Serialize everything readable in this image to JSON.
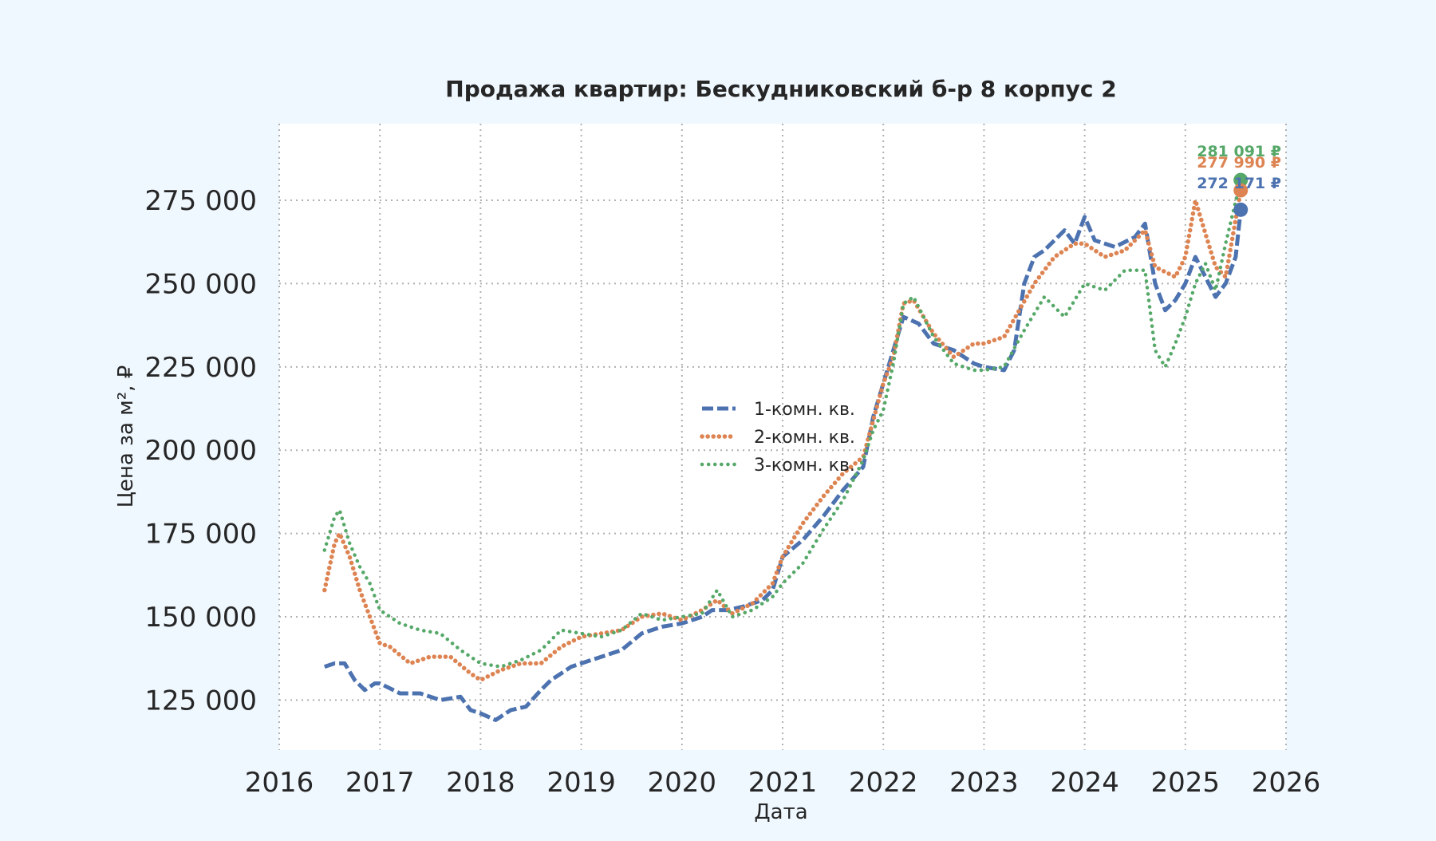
{
  "chart_data": {
    "type": "line",
    "title": "Продажа квартир: Бескудниковский б-р 8 корпус 2",
    "xlabel": "Дата",
    "ylabel": "Цена за м², ₽",
    "xlim": [
      2016,
      2026
    ],
    "ylim": [
      110000,
      298000
    ],
    "x_ticks": [
      "2016",
      "2017",
      "2018",
      "2019",
      "2020",
      "2021",
      "2022",
      "2023",
      "2024",
      "2025",
      "2026"
    ],
    "y_ticks": [
      "125 000",
      "150 000",
      "175 000",
      "200 000",
      "225 000",
      "250 000",
      "275 000"
    ],
    "y_tick_values": [
      125000,
      150000,
      175000,
      200000,
      225000,
      250000,
      275000
    ],
    "grid": true,
    "legend_position": "center",
    "colors": {
      "one_room": "#4c72b0",
      "two_room": "#dd8452",
      "three_room": "#55a868",
      "background": "#f0f8ff",
      "plot_background": "#ffffff"
    },
    "series": [
      {
        "name": "1-комн. кв.",
        "color": "#4c72b0",
        "style": "dashed",
        "x": [
          2016.45,
          2016.55,
          2016.65,
          2016.75,
          2016.85,
          2016.95,
          2017.0,
          2017.2,
          2017.4,
          2017.6,
          2017.8,
          2017.9,
          2018.0,
          2018.15,
          2018.3,
          2018.45,
          2018.6,
          2018.7,
          2018.8,
          2018.9,
          2019.0,
          2019.2,
          2019.4,
          2019.6,
          2019.8,
          2020.0,
          2020.2,
          2020.3,
          2020.45,
          2020.6,
          2020.8,
          2020.9,
          2021.0,
          2021.2,
          2021.4,
          2021.6,
          2021.8,
          2021.9,
          2022.0,
          2022.1,
          2022.2,
          2022.35,
          2022.5,
          2022.7,
          2022.9,
          2023.0,
          2023.2,
          2023.3,
          2023.4,
          2023.5,
          2023.6,
          2023.8,
          2023.9,
          2024.0,
          2024.1,
          2024.3,
          2024.5,
          2024.6,
          2024.7,
          2024.8,
          2024.9,
          2025.0,
          2025.1,
          2025.2,
          2025.3,
          2025.4,
          2025.5,
          2025.55
        ],
        "y": [
          135000,
          136000,
          136000,
          131000,
          128000,
          130000,
          130000,
          127000,
          127000,
          125000,
          126000,
          122000,
          121000,
          119000,
          122000,
          123000,
          128000,
          131000,
          133000,
          135000,
          136000,
          138000,
          140000,
          145000,
          147000,
          148000,
          150000,
          152000,
          152000,
          153000,
          155000,
          158000,
          168000,
          173000,
          180000,
          188000,
          195000,
          210000,
          220000,
          230000,
          240000,
          238000,
          232000,
          230000,
          226000,
          225000,
          224000,
          230000,
          250000,
          258000,
          260000,
          266000,
          262000,
          270000,
          263000,
          261000,
          264000,
          268000,
          250000,
          242000,
          245000,
          250000,
          258000,
          252000,
          246000,
          250000,
          258000,
          272171
        ]
      },
      {
        "name": "2-комн. кв.",
        "color": "#dd8452",
        "style": "dotted-dense",
        "x": [
          2016.45,
          2016.55,
          2016.6,
          2016.7,
          2016.8,
          2016.9,
          2017.0,
          2017.1,
          2017.3,
          2017.5,
          2017.7,
          2017.9,
          2018.0,
          2018.2,
          2018.4,
          2018.6,
          2018.8,
          2019.0,
          2019.2,
          2019.4,
          2019.6,
          2019.8,
          2020.0,
          2020.2,
          2020.35,
          2020.5,
          2020.7,
          2020.9,
          2021.0,
          2021.2,
          2021.4,
          2021.6,
          2021.8,
          2022.0,
          2022.1,
          2022.2,
          2022.3,
          2022.5,
          2022.7,
          2022.9,
          2023.0,
          2023.2,
          2023.35,
          2023.5,
          2023.7,
          2023.9,
          2024.0,
          2024.2,
          2024.4,
          2024.6,
          2024.7,
          2024.9,
          2025.0,
          2025.1,
          2025.2,
          2025.3,
          2025.4,
          2025.55
        ],
        "y": [
          158000,
          172000,
          175000,
          168000,
          158000,
          150000,
          142000,
          141000,
          136000,
          138000,
          138000,
          133000,
          131000,
          134000,
          136000,
          136000,
          141000,
          144000,
          145000,
          146000,
          150000,
          151000,
          149000,
          152000,
          155000,
          151000,
          154000,
          160000,
          168000,
          178000,
          186000,
          193000,
          198000,
          220000,
          228000,
          244000,
          245000,
          235000,
          228000,
          232000,
          232000,
          234000,
          242000,
          250000,
          258000,
          262000,
          262000,
          258000,
          260000,
          266000,
          255000,
          252000,
          258000,
          275000,
          265000,
          255000,
          252000,
          277990
        ]
      },
      {
        "name": "3-комн. кв.",
        "color": "#55a868",
        "style": "dotted",
        "x": [
          2016.45,
          2016.55,
          2016.6,
          2016.7,
          2016.8,
          2016.9,
          2017.0,
          2017.2,
          2017.4,
          2017.6,
          2017.8,
          2017.9,
          2018.0,
          2018.2,
          2018.4,
          2018.6,
          2018.8,
          2019.0,
          2019.2,
          2019.4,
          2019.6,
          2019.8,
          2020.0,
          2020.2,
          2020.35,
          2020.5,
          2020.7,
          2020.9,
          2021.0,
          2021.2,
          2021.4,
          2021.6,
          2021.8,
          2021.9,
          2022.0,
          2022.1,
          2022.2,
          2022.3,
          2022.5,
          2022.7,
          2022.9,
          2023.0,
          2023.2,
          2023.4,
          2023.6,
          2023.8,
          2024.0,
          2024.2,
          2024.4,
          2024.6,
          2024.7,
          2024.8,
          2024.9,
          2025.0,
          2025.1,
          2025.2,
          2025.3,
          2025.4,
          2025.55
        ],
        "y": [
          170000,
          180000,
          182000,
          172000,
          165000,
          160000,
          152000,
          148000,
          146000,
          145000,
          140000,
          138000,
          136000,
          135000,
          137000,
          140000,
          146000,
          145000,
          144000,
          146000,
          151000,
          149000,
          150000,
          151000,
          158000,
          150000,
          152000,
          156000,
          160000,
          166000,
          176000,
          185000,
          197000,
          206000,
          212000,
          226000,
          244000,
          246000,
          234000,
          226000,
          224000,
          224000,
          225000,
          236000,
          246000,
          240000,
          250000,
          248000,
          254000,
          254000,
          230000,
          225000,
          232000,
          240000,
          250000,
          256000,
          248000,
          262000,
          281091
        ]
      }
    ],
    "end_labels": [
      {
        "series": "3-комн. кв.",
        "text": "281 091 ₽",
        "value": 281091
      },
      {
        "series": "2-комн. кв.",
        "text": "277 990 ₽",
        "value": 277990
      },
      {
        "series": "1-комн. кв.",
        "text": "272 171 ₽",
        "value": 272171
      }
    ]
  }
}
